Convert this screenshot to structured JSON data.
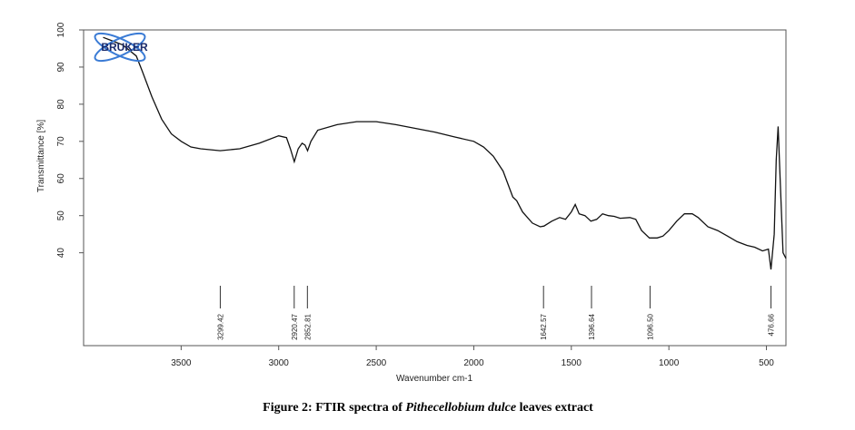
{
  "chart_data": {
    "type": "line",
    "xlabel": "Wavenumber cm-1",
    "ylabel": "Transmittance [%]",
    "logo": "BRUKER",
    "caption": {
      "prefix": "Figure 2: FTIR spectra of ",
      "species": "Pithecellobium dulce",
      "suffix": " leaves extract"
    },
    "xlim": [
      4000,
      400
    ],
    "ylim": [
      15,
      100
    ],
    "xticks": [
      3500,
      3000,
      2500,
      2000,
      1500,
      1000,
      500
    ],
    "yticks": [
      40,
      50,
      60,
      70,
      80,
      90,
      100
    ],
    "color": "#111111",
    "x": [
      3900,
      3800,
      3730,
      3700,
      3650,
      3600,
      3550,
      3500,
      3450,
      3400,
      3300,
      3200,
      3100,
      3000,
      2960,
      2940,
      2920,
      2900,
      2880,
      2865,
      2852,
      2835,
      2800,
      2700,
      2600,
      2500,
      2400,
      2300,
      2200,
      2100,
      2000,
      1950,
      1900,
      1850,
      1800,
      1780,
      1750,
      1700,
      1660,
      1640,
      1600,
      1560,
      1530,
      1500,
      1480,
      1460,
      1430,
      1400,
      1370,
      1340,
      1310,
      1280,
      1250,
      1200,
      1170,
      1140,
      1100,
      1060,
      1030,
      1000,
      960,
      920,
      880,
      850,
      800,
      750,
      700,
      650,
      600,
      560,
      520,
      490,
      477,
      460,
      450,
      440,
      430,
      415,
      405,
      400
    ],
    "values": [
      98,
      96,
      93,
      89,
      82,
      76,
      72,
      70,
      68.5,
      68,
      67.5,
      68,
      69.5,
      71.5,
      71,
      68,
      64.5,
      68,
      69.5,
      69,
      67.5,
      70,
      73,
      74.5,
      75.3,
      75.3,
      74.5,
      73.5,
      72.5,
      71.2,
      70,
      68.5,
      66,
      62,
      55,
      54,
      51,
      48,
      47,
      47.2,
      48.5,
      49.5,
      49,
      51,
      53,
      50.5,
      50,
      48.5,
      49,
      50.5,
      50,
      49.8,
      49.3,
      49.5,
      49,
      46,
      44,
      44,
      44.5,
      46,
      48.5,
      50.5,
      50.5,
      49.5,
      47,
      46,
      44.5,
      43,
      42,
      41.5,
      40.5,
      41,
      35.5,
      45,
      65,
      74,
      60,
      40,
      39,
      38.5
    ],
    "peaks": [
      {
        "value": 3299.42,
        "label": "3299.42"
      },
      {
        "value": 2920.47,
        "label": "2920.47"
      },
      {
        "value": 2852.81,
        "label": "2852.81"
      },
      {
        "value": 1642.57,
        "label": "1642.57"
      },
      {
        "value": 1396.64,
        "label": "1396.64"
      },
      {
        "value": 1096.5,
        "label": "1096.50"
      },
      {
        "value": 476.66,
        "label": "476.66"
      }
    ]
  }
}
